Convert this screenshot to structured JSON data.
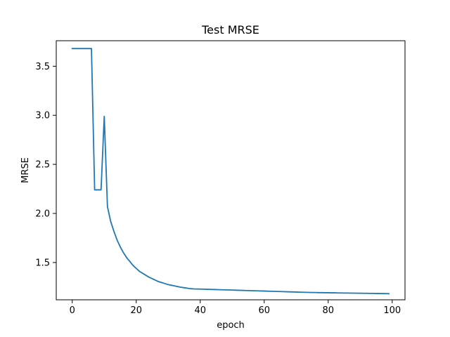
{
  "chart_data": {
    "type": "line",
    "title": "Test MRSE",
    "xlabel": "epoch",
    "ylabel": "MRSE",
    "xlim": [
      -5,
      104
    ],
    "ylim": [
      1.12,
      3.76
    ],
    "xticks": [
      0,
      20,
      40,
      60,
      80,
      100
    ],
    "yticks": [
      1.5,
      2.0,
      2.5,
      3.0,
      3.5
    ],
    "xtick_labels": [
      "0",
      "20",
      "40",
      "60",
      "80",
      "100"
    ],
    "ytick_labels": [
      "1.5",
      "2.0",
      "2.5",
      "3.0",
      "3.5"
    ],
    "grid": false,
    "series": [
      {
        "color": "#1f77b4",
        "x": [
          0,
          1,
          2,
          3,
          4,
          5,
          6,
          7,
          8,
          9,
          10,
          11,
          12,
          13,
          14,
          15,
          16,
          17,
          18,
          19,
          20,
          21,
          22,
          23,
          24,
          25,
          26,
          27,
          28,
          29,
          30,
          31,
          32,
          33,
          34,
          35,
          36,
          37,
          38,
          39,
          40,
          41,
          42,
          43,
          44,
          45,
          46,
          47,
          48,
          49,
          50,
          51,
          52,
          53,
          54,
          55,
          56,
          57,
          58,
          59,
          60,
          61,
          62,
          63,
          64,
          65,
          66,
          67,
          68,
          69,
          70,
          71,
          72,
          73,
          74,
          75,
          76,
          77,
          78,
          79,
          80,
          81,
          82,
          83,
          84,
          85,
          86,
          87,
          88,
          89,
          90,
          91,
          92,
          93,
          94,
          95,
          96,
          97,
          98,
          99
        ],
        "y": [
          3.68,
          3.68,
          3.68,
          3.68,
          3.68,
          3.68,
          3.68,
          2.24,
          2.24,
          2.24,
          2.99,
          2.07,
          1.92,
          1.82,
          1.73,
          1.66,
          1.6,
          1.55,
          1.51,
          1.47,
          1.44,
          1.41,
          1.39,
          1.37,
          1.35,
          1.335,
          1.32,
          1.305,
          1.295,
          1.285,
          1.275,
          1.268,
          1.261,
          1.254,
          1.248,
          1.243,
          1.238,
          1.233,
          1.231,
          1.23,
          1.229,
          1.228,
          1.227,
          1.226,
          1.225,
          1.224,
          1.223,
          1.222,
          1.221,
          1.22,
          1.219,
          1.218,
          1.217,
          1.216,
          1.215,
          1.214,
          1.213,
          1.212,
          1.211,
          1.21,
          1.209,
          1.208,
          1.207,
          1.206,
          1.205,
          1.204,
          1.203,
          1.202,
          1.201,
          1.2,
          1.199,
          1.198,
          1.197,
          1.196,
          1.195,
          1.194,
          1.194,
          1.193,
          1.193,
          1.192,
          1.192,
          1.191,
          1.191,
          1.19,
          1.19,
          1.189,
          1.189,
          1.188,
          1.188,
          1.187,
          1.187,
          1.186,
          1.186,
          1.185,
          1.185,
          1.184,
          1.184,
          1.183,
          1.183,
          1.182
        ]
      }
    ]
  }
}
